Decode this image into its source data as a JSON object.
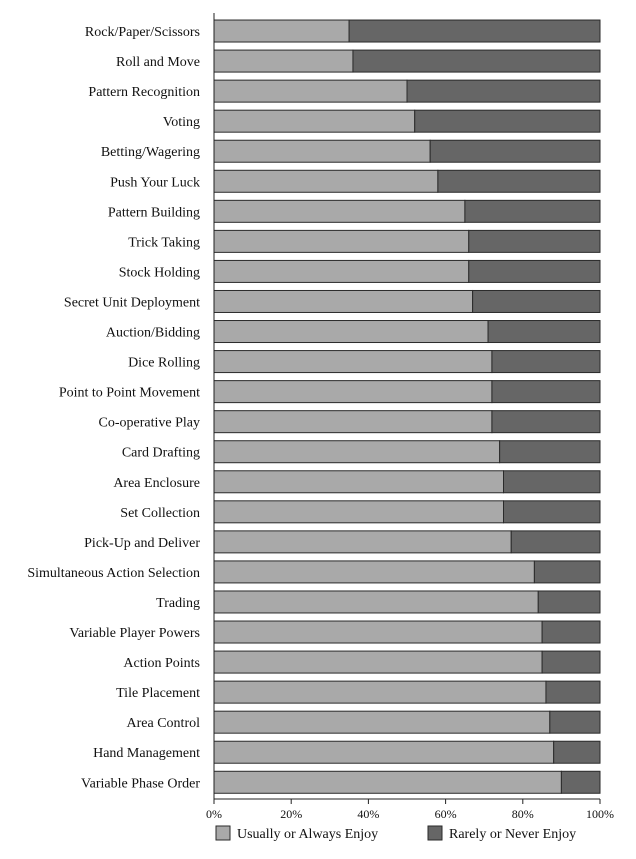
{
  "chart_data": {
    "type": "bar",
    "orientation": "horizontal",
    "stacked": true,
    "percent_stacked": true,
    "categories": [
      "Rock/Paper/Scissors",
      "Roll and Move",
      "Pattern Recognition",
      "Voting",
      "Betting/Wagering",
      "Push Your Luck",
      "Pattern Building",
      "Trick Taking",
      "Stock Holding",
      "Secret Unit Deployment",
      "Auction/Bidding",
      "Dice Rolling",
      "Point to Point Movement",
      "Co-operative Play",
      "Card Drafting",
      "Area Enclosure",
      "Set Collection",
      "Pick-Up and Deliver",
      "Simultaneous Action Selection",
      "Trading",
      "Variable Player Powers",
      "Action Points",
      "Tile Placement",
      "Area Control",
      "Hand Management",
      "Variable Phase Order"
    ],
    "series": [
      {
        "name": "Usually or Always Enjoy",
        "color": "#a9a9a9",
        "values": [
          35,
          36,
          50,
          52,
          56,
          58,
          65,
          66,
          66,
          67,
          71,
          72,
          72,
          72,
          74,
          75,
          75,
          77,
          83,
          84,
          85,
          85,
          86,
          87,
          88,
          90
        ]
      },
      {
        "name": "Rarely or Never Enjoy",
        "color": "#666666",
        "values": [
          65,
          64,
          50,
          48,
          44,
          42,
          35,
          34,
          34,
          33,
          29,
          28,
          28,
          28,
          26,
          25,
          25,
          23,
          17,
          16,
          15,
          15,
          14,
          13,
          12,
          10
        ]
      }
    ],
    "xlim": [
      0,
      100
    ],
    "x_ticks": [
      "0%",
      "20%",
      "40%",
      "60%",
      "80%",
      "100%"
    ],
    "grid": false,
    "legend_position": "bottom",
    "xlabel": "",
    "ylabel": "",
    "title": ""
  }
}
